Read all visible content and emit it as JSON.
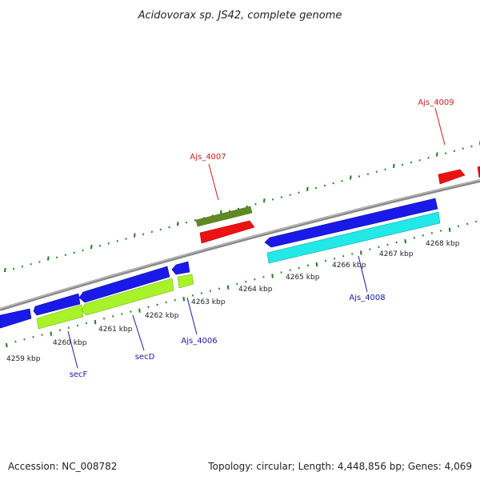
{
  "title": "Acidovorax sp. JS42, complete genome",
  "footer": {
    "accession": "Accession: NC_008782",
    "summary": "Topology: circular; Length: 4,448,856 bp; Genes: 4,069"
  },
  "colors": {
    "backbone": "#8a8a8a",
    "tick": "#1e7a1e",
    "gene_red": "#ee1111",
    "gene_olive": "#5f8a22",
    "gene_blue": "#1a1ae8",
    "gene_lime": "#a8f22a",
    "gene_cyan": "#22e8e8",
    "label_red": "#d61a1a",
    "label_blue": "#1a1aaa"
  },
  "scale_labels": [
    {
      "text": "4259 kbp",
      "kbp": 4259
    },
    {
      "text": "4260 kbp",
      "kbp": 4260
    },
    {
      "text": "4261 kbp",
      "kbp": 4261
    },
    {
      "text": "4262 kbp",
      "kbp": 4262
    },
    {
      "text": "4263 kbp",
      "kbp": 4263
    },
    {
      "text": "4264 kbp",
      "kbp": 4264
    },
    {
      "text": "4265 kbp",
      "kbp": 4265
    },
    {
      "text": "4266 kbp",
      "kbp": 4266
    },
    {
      "text": "4267 kbp",
      "kbp": 4267
    },
    {
      "text": "4268 kbp",
      "kbp": 4268
    }
  ],
  "genes": [
    {
      "label": "Ajs_4007",
      "strand": "forward",
      "color": "red",
      "track": "outer"
    },
    {
      "label": "Ajs_4009",
      "strand": "forward",
      "color": "red",
      "track": "outer"
    },
    {
      "label": "secF",
      "strand": "reverse",
      "color": "lime",
      "track": "inner"
    },
    {
      "label": "secD",
      "strand": "reverse",
      "color": "lime",
      "track": "inner"
    },
    {
      "label": "Ajs_4006",
      "strand": "reverse",
      "color": "lime",
      "track": "inner"
    },
    {
      "label": "Ajs_4008",
      "strand": "reverse",
      "color": "cyan",
      "track": "inner"
    }
  ]
}
